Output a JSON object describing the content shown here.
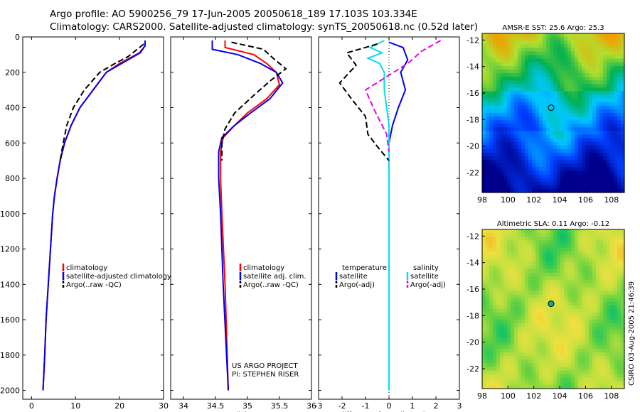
{
  "header": {
    "line1": "Argo profile: AO 5900256_79 17-Jun-2005 20050618_189 17.103S 103.334E",
    "line2": "Climatology: CARS2000. Satellite-adjusted climatology: synTS_20050618.nc (0.52d later)"
  },
  "stamp": "CSIRO 03-Aug-2005 21:46:39",
  "colors": {
    "red": "#ff0000",
    "blue": "#0000ee",
    "black": "#000000",
    "cyan": "#00e0ee",
    "magenta": "#ee00ee"
  },
  "chart_data": [
    {
      "type": "line",
      "name": "temperature-profile",
      "xlabel": "temperature",
      "ylabel": "",
      "xlim": [
        -2,
        30
      ],
      "ylim": [
        2050,
        0
      ],
      "xticks": [
        0,
        10,
        20,
        30
      ],
      "yticks": [
        0,
        200,
        400,
        600,
        800,
        1000,
        1200,
        1400,
        1600,
        1800,
        2000
      ],
      "legend": [
        "climatology",
        "satellite-adjusted climatology",
        "Argo(..raw -QC)"
      ],
      "series": [
        {
          "name": "climatology",
          "color": "red",
          "dash": "",
          "points": [
            [
              25.8,
              20
            ],
            [
              25.8,
              50
            ],
            [
              24.5,
              90
            ],
            [
              20,
              150
            ],
            [
              17,
              200
            ],
            [
              14,
              300
            ],
            [
              11,
              400
            ],
            [
              9,
              500
            ],
            [
              7.5,
              600
            ],
            [
              6.5,
              700
            ],
            [
              5.8,
              800
            ],
            [
              5.2,
              900
            ],
            [
              4.8,
              1000
            ],
            [
              4.3,
              1200
            ],
            [
              3.8,
              1400
            ],
            [
              3.3,
              1600
            ],
            [
              3,
              1800
            ],
            [
              2.6,
              2000
            ]
          ]
        },
        {
          "name": "satellite-adjusted climatology",
          "color": "blue",
          "dash": "",
          "points": [
            [
              25.8,
              20
            ],
            [
              25.8,
              50
            ],
            [
              24.7,
              90
            ],
            [
              20.5,
              150
            ],
            [
              17,
              200
            ],
            [
              14,
              300
            ],
            [
              11,
              400
            ],
            [
              9,
              500
            ],
            [
              7.5,
              600
            ],
            [
              6.5,
              700
            ],
            [
              5.8,
              800
            ],
            [
              5.2,
              900
            ],
            [
              4.8,
              1000
            ],
            [
              4.3,
              1200
            ],
            [
              3.8,
              1400
            ],
            [
              3.3,
              1600
            ],
            [
              3,
              1800
            ],
            [
              2.6,
              2000
            ]
          ]
        },
        {
          "name": "Argo(..raw -QC)",
          "color": "black",
          "dash": "8,4",
          "points": [
            [
              25.5,
              40
            ],
            [
              24,
              70
            ],
            [
              22,
              110
            ],
            [
              19,
              150
            ],
            [
              15.5,
              200
            ],
            [
              12,
              300
            ],
            [
              9.5,
              400
            ],
            [
              8,
              500
            ],
            [
              7.2,
              600
            ],
            [
              6.5,
              700
            ]
          ]
        }
      ]
    },
    {
      "type": "line",
      "name": "salinity-profile",
      "xlabel": "salinity",
      "xlim": [
        33.8,
        36
      ],
      "ylim": [
        2050,
        0
      ],
      "xticks": [
        34,
        34.5,
        35,
        35.5,
        36
      ],
      "yticks": [
        0,
        200,
        400,
        600,
        800,
        1000,
        1200,
        1400,
        1600,
        1800,
        2000
      ],
      "legend": [
        "climatology",
        "satellite adj. clim.",
        "Argo(..raw -QC)"
      ],
      "annotation": [
        "US ARGO PROJECT",
        "PI: STEPHEN RISER"
      ],
      "series": [
        {
          "name": "climatology",
          "color": "red",
          "dash": "",
          "points": [
            [
              34.65,
              20
            ],
            [
              34.65,
              60
            ],
            [
              35.1,
              100
            ],
            [
              35.3,
              150
            ],
            [
              35.45,
              200
            ],
            [
              35.5,
              270
            ],
            [
              35.3,
              350
            ],
            [
              35.0,
              430
            ],
            [
              34.8,
              500
            ],
            [
              34.62,
              570
            ],
            [
              34.58,
              650
            ],
            [
              34.58,
              800
            ],
            [
              34.6,
              1000
            ],
            [
              34.65,
              1400
            ],
            [
              34.7,
              2000
            ]
          ]
        },
        {
          "name": "satellite adj. clim.",
          "color": "blue",
          "dash": "",
          "points": [
            [
              34.45,
              20
            ],
            [
              34.45,
              70
            ],
            [
              34.85,
              100
            ],
            [
              35.2,
              150
            ],
            [
              35.45,
              200
            ],
            [
              35.55,
              260
            ],
            [
              35.35,
              350
            ],
            [
              35.05,
              430
            ],
            [
              34.8,
              500
            ],
            [
              34.6,
              570
            ],
            [
              34.55,
              650
            ],
            [
              34.55,
              800
            ],
            [
              34.58,
              1000
            ],
            [
              34.62,
              1400
            ],
            [
              34.7,
              2000
            ]
          ]
        },
        {
          "name": "Argo(..raw -QC)",
          "color": "black",
          "dash": "8,4",
          "points": [
            [
              34.75,
              30
            ],
            [
              35.25,
              70
            ],
            [
              35.4,
              120
            ],
            [
              35.6,
              180
            ],
            [
              35.35,
              250
            ],
            [
              35.1,
              330
            ],
            [
              34.8,
              430
            ],
            [
              34.65,
              520
            ],
            [
              34.6,
              600
            ],
            [
              34.6,
              700
            ]
          ]
        }
      ]
    },
    {
      "type": "line",
      "name": "difference-profile",
      "xlabel": "difference from climatology",
      "xlim": [
        -3,
        3
      ],
      "ylim": [
        2050,
        0
      ],
      "xticks": [
        -3,
        -2,
        -1,
        0,
        1,
        2,
        3
      ],
      "yticks": [
        0,
        200,
        400,
        600,
        800,
        1000,
        1200,
        1400,
        1600,
        1800,
        2000
      ],
      "legend_left": [
        "temperature",
        "satellite",
        "Argo(-adj)"
      ],
      "legend_right": [
        "salinity",
        "satellite",
        "Argo(-adj)"
      ],
      "series": [
        {
          "name": "temperature satellite",
          "color": "blue",
          "dash": "",
          "points": [
            [
              0,
              30
            ],
            [
              0.6,
              60
            ],
            [
              0.8,
              130
            ],
            [
              0.5,
              200
            ],
            [
              0.7,
              300
            ],
            [
              0.4,
              400
            ],
            [
              0.15,
              500
            ],
            [
              0,
              600
            ],
            [
              0,
              2000
            ]
          ]
        },
        {
          "name": "salinity satellite",
          "color": "cyan",
          "dash": "",
          "points": [
            [
              -0.2,
              20
            ],
            [
              -0.8,
              60
            ],
            [
              -0.3,
              90
            ],
            [
              -0.9,
              120
            ],
            [
              -0.4,
              150
            ],
            [
              -0.2,
              200
            ],
            [
              -0.2,
              300
            ],
            [
              -0.1,
              400
            ],
            [
              0,
              500
            ],
            [
              0,
              2000
            ]
          ]
        },
        {
          "name": "temperature Argo(-adj)",
          "color": "black",
          "dash": "8,4",
          "points": [
            [
              -0.5,
              40
            ],
            [
              -1.8,
              90
            ],
            [
              -1.4,
              160
            ],
            [
              -2.1,
              260
            ],
            [
              -1.6,
              350
            ],
            [
              -1,
              450
            ],
            [
              -0.9,
              550
            ],
            [
              -0.5,
              620
            ],
            [
              0,
              700
            ]
          ]
        },
        {
          "name": "salinity Argo(-adj)",
          "color": "magenta",
          "dash": "8,4",
          "points": [
            [
              2.2,
              20
            ],
            [
              1.4,
              80
            ],
            [
              0.8,
              150
            ],
            [
              -1.0,
              300
            ],
            [
              -0.6,
              420
            ],
            [
              -0.1,
              550
            ],
            [
              0,
              650
            ]
          ]
        }
      ]
    },
    {
      "type": "heatmap",
      "name": "sst-map",
      "title": "AMSR-E SST: 25.6 Argo: 25.3",
      "xlim": [
        98,
        109
      ],
      "ylim": [
        -23.5,
        -11.5
      ],
      "xticks": [
        98,
        100,
        102,
        104,
        106,
        108
      ],
      "yticks": [
        -12,
        -14,
        -16,
        -18,
        -20,
        -22
      ],
      "marker": {
        "lon": 103.334,
        "lat": -17.103
      },
      "colorscale": [
        "#00008c",
        "#0040ff",
        "#00c8ff",
        "#00b050",
        "#b0e030",
        "#f0a000"
      ]
    },
    {
      "type": "heatmap",
      "name": "sla-map",
      "title": "Altimetric SLA: 0.11 Argo: -0.12",
      "xlim": [
        98,
        109
      ],
      "ylim": [
        -23.5,
        -11.5
      ],
      "xticks": [
        98,
        100,
        102,
        104,
        106,
        108
      ],
      "yticks": [
        -12,
        -14,
        -16,
        -18,
        -20,
        -22
      ],
      "marker": {
        "lon": 103.334,
        "lat": -17.103
      },
      "colorscale": [
        "#00c070",
        "#60d040",
        "#c0e040",
        "#f0e040",
        "#f0b020"
      ]
    }
  ]
}
